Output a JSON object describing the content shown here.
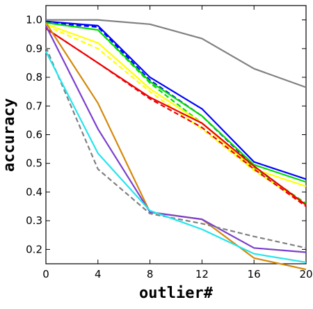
{
  "chart_data": {
    "type": "line",
    "xlabel": "outlier#",
    "ylabel": "accuracy",
    "xlim": [
      0,
      20
    ],
    "ylim": [
      0.15,
      1.05
    ],
    "x_ticks": [
      0,
      4,
      8,
      12,
      16,
      20
    ],
    "y_ticks": [
      0.2,
      0.3,
      0.4,
      0.5,
      0.6,
      0.7,
      0.8,
      0.9,
      1.0
    ],
    "x_tick_labels": [
      "0",
      "4",
      "8",
      "12",
      "16",
      "20"
    ],
    "y_tick_labels": [
      "0.2",
      "0.3",
      "0.4",
      "0.5",
      "0.6",
      "0.7",
      "0.8",
      "0.9",
      "1.0"
    ],
    "grid": false,
    "legend": "none",
    "x": [
      0,
      4,
      8,
      12,
      16,
      20
    ],
    "series": [
      {
        "color": "#808080",
        "dash": "solid",
        "values": [
          1.0,
          1.0,
          0.985,
          0.935,
          0.83,
          0.765
        ]
      },
      {
        "color": "#0000ff",
        "dash": "solid",
        "values": [
          0.995,
          0.98,
          0.8,
          0.69,
          0.505,
          0.445
        ]
      },
      {
        "color": "#0000ff",
        "dash": "dashed",
        "values": [
          0.99,
          0.975,
          0.79,
          0.665,
          0.49,
          0.355
        ]
      },
      {
        "color": "#00dd00",
        "dash": "solid",
        "values": [
          0.99,
          0.965,
          0.785,
          0.665,
          0.495,
          0.435
        ]
      },
      {
        "color": "#00dd00",
        "dash": "dashed",
        "values": [
          0.99,
          0.965,
          0.78,
          0.64,
          0.485,
          0.36
        ]
      },
      {
        "color": "#ffff00",
        "dash": "solid",
        "values": [
          0.985,
          0.92,
          0.76,
          0.64,
          0.48,
          0.42
        ]
      },
      {
        "color": "#ffff00",
        "dash": "dashed",
        "values": [
          0.98,
          0.9,
          0.75,
          0.62,
          0.475,
          0.355
        ]
      },
      {
        "color": "#ee0000",
        "dash": "solid",
        "values": [
          0.97,
          0.85,
          0.73,
          0.64,
          0.49,
          0.355
        ]
      },
      {
        "color": "#ee0000",
        "dash": "dashed",
        "values": [
          0.97,
          0.85,
          0.725,
          0.625,
          0.48,
          0.35
        ]
      },
      {
        "color": "#d4880a",
        "dash": "solid",
        "values": [
          0.99,
          0.71,
          0.33,
          0.305,
          0.17,
          0.13
        ]
      },
      {
        "color": "#7b3fcf",
        "dash": "solid",
        "values": [
          0.98,
          0.62,
          0.33,
          0.305,
          0.205,
          0.19
        ]
      },
      {
        "color": "#808080",
        "dash": "dashed",
        "values": [
          0.905,
          0.48,
          0.325,
          0.29,
          0.245,
          0.205
        ]
      },
      {
        "color": "#22e5ee",
        "dash": "solid",
        "values": [
          0.89,
          0.535,
          0.335,
          0.27,
          0.185,
          0.155
        ]
      }
    ]
  }
}
